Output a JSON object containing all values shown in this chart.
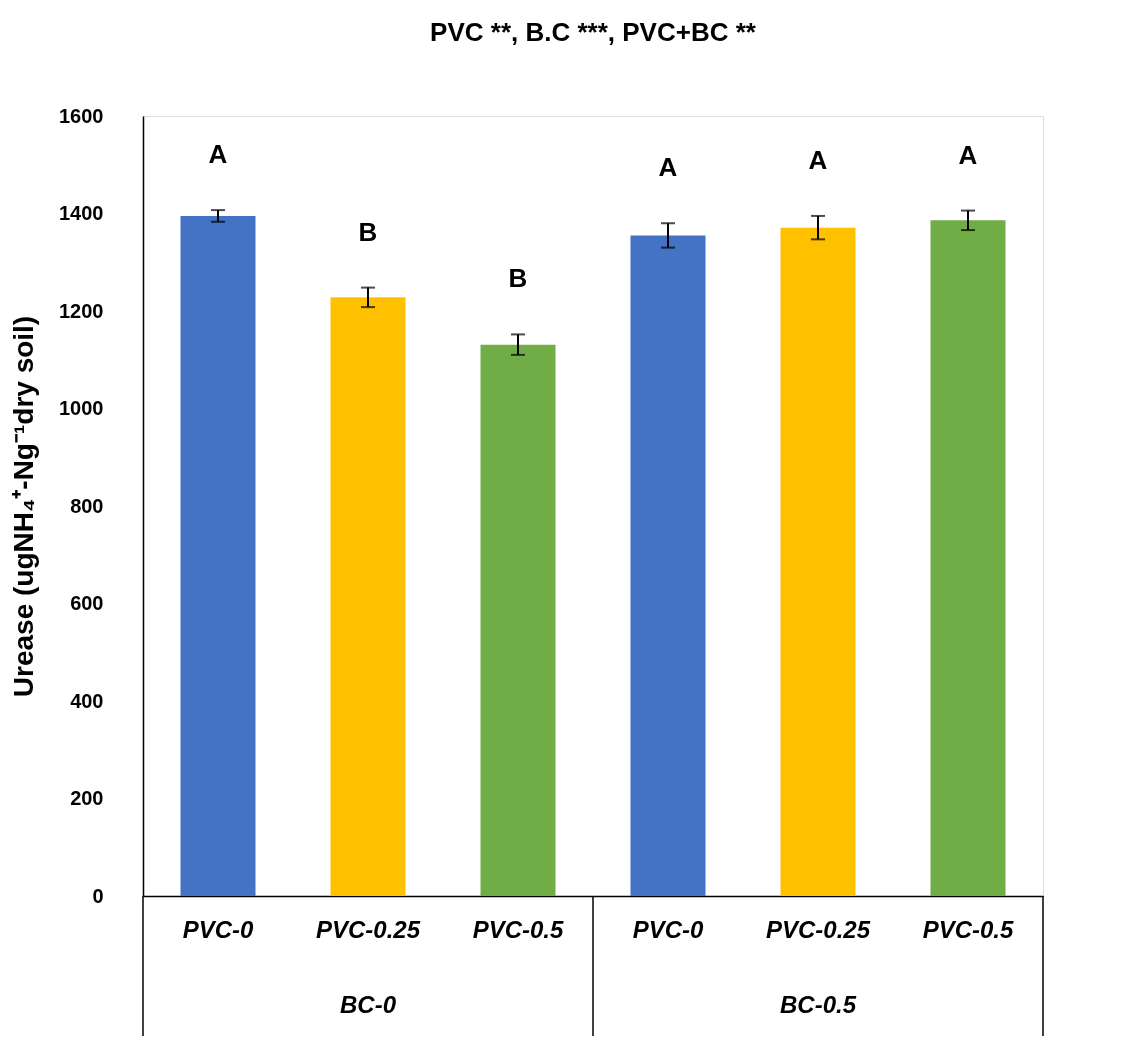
{
  "chart_data": {
    "type": "bar",
    "title": "PVC **, B.C ***, PVC+BC **",
    "ylabel": "Urease (ugNH₄⁺-Ng⁻¹dry soil)",
    "categories": [
      "PVC-0",
      "PVC-0.25",
      "PVC-0.5",
      "PVC-0",
      "PVC-0.25",
      "PVC-0.5"
    ],
    "values": [
      1395,
      1228,
      1131,
      1355,
      1371,
      1386
    ],
    "errors": [
      12,
      20,
      21,
      25,
      24,
      20
    ],
    "colors": [
      "#4472c4",
      "#ffc000",
      "#70ad47",
      "#4472c4",
      "#ffc000",
      "#70ad47"
    ],
    "ylim": [
      0,
      1600
    ],
    "yticks": [
      0,
      200,
      400,
      600,
      800,
      1000,
      1200,
      1400,
      1600
    ],
    "grid": false,
    "annotations": [
      "A",
      "B",
      "B",
      "A",
      "A",
      "A",
      "BC-0",
      "BC-0.5"
    ]
  }
}
